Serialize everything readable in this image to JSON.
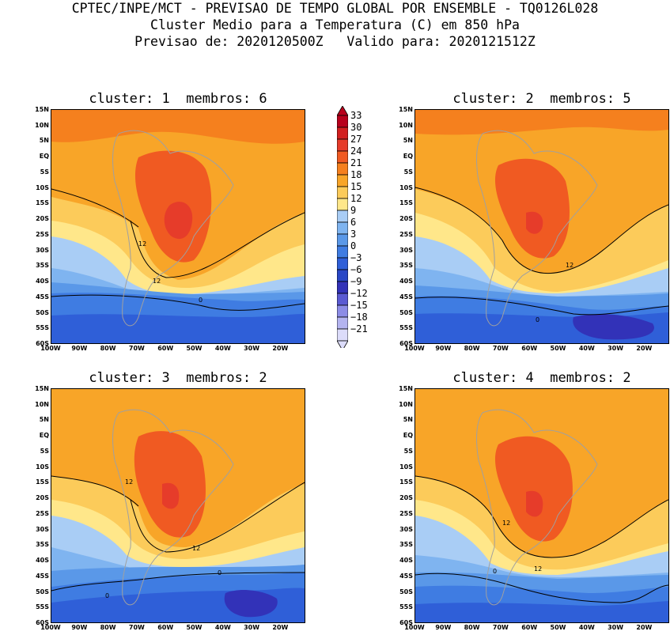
{
  "header": {
    "line1": "CPTEC/INPE/MCT - PREVISAO DE TEMPO GLOBAL POR ENSEMBLE - TQ0126L028",
    "line2": "Cluster Medio para a Temperatura (C) em 850 hPa",
    "line3": "Previsao de: 2020120500Z   Valido para: 2020121512Z"
  },
  "axes": {
    "lat_labels": [
      "15N",
      "10N",
      "5N",
      "EQ",
      "5S",
      "10S",
      "15S",
      "20S",
      "25S",
      "30S",
      "35S",
      "40S",
      "45S",
      "50S",
      "55S",
      "60S"
    ],
    "lon_labels": [
      "100W",
      "90W",
      "80W",
      "70W",
      "60W",
      "50W",
      "40W",
      "30W",
      "20W"
    ]
  },
  "colorbar": {
    "levels": [
      "33",
      "30",
      "27",
      "24",
      "21",
      "18",
      "15",
      "12",
      "9",
      "6",
      "3",
      "0",
      "-3",
      "-6",
      "-9",
      "-12",
      "-15",
      "-18",
      "-21"
    ],
    "colors": [
      "#b8001c",
      "#d21f1f",
      "#e63c2a",
      "#f05a22",
      "#f5801e",
      "#f8a528",
      "#fccb5a",
      "#ffe78a",
      "#a9cdf5",
      "#7fb4f0",
      "#5a98e8",
      "#3f7ce2",
      "#2f5fd8",
      "#2947c6",
      "#3232b8",
      "#5a5ad2",
      "#8c8ce6",
      "#b4b4f0",
      "#dcdcfa"
    ]
  },
  "panels": [
    {
      "title": "cluster: 1  membros: 6",
      "labels": {
        "a": "12",
        "b": "12",
        "c": "0"
      }
    },
    {
      "title": "cluster: 2  membros: 5",
      "labels": {
        "a": "12",
        "b": "0"
      }
    },
    {
      "title": "cluster: 3  membros: 2",
      "labels": {
        "a": "12",
        "b": "12",
        "c": "0",
        "d": "0"
      }
    },
    {
      "title": "cluster: 4  membros: 2",
      "labels": {
        "a": "12",
        "b": "12",
        "c": "0"
      }
    }
  ]
}
